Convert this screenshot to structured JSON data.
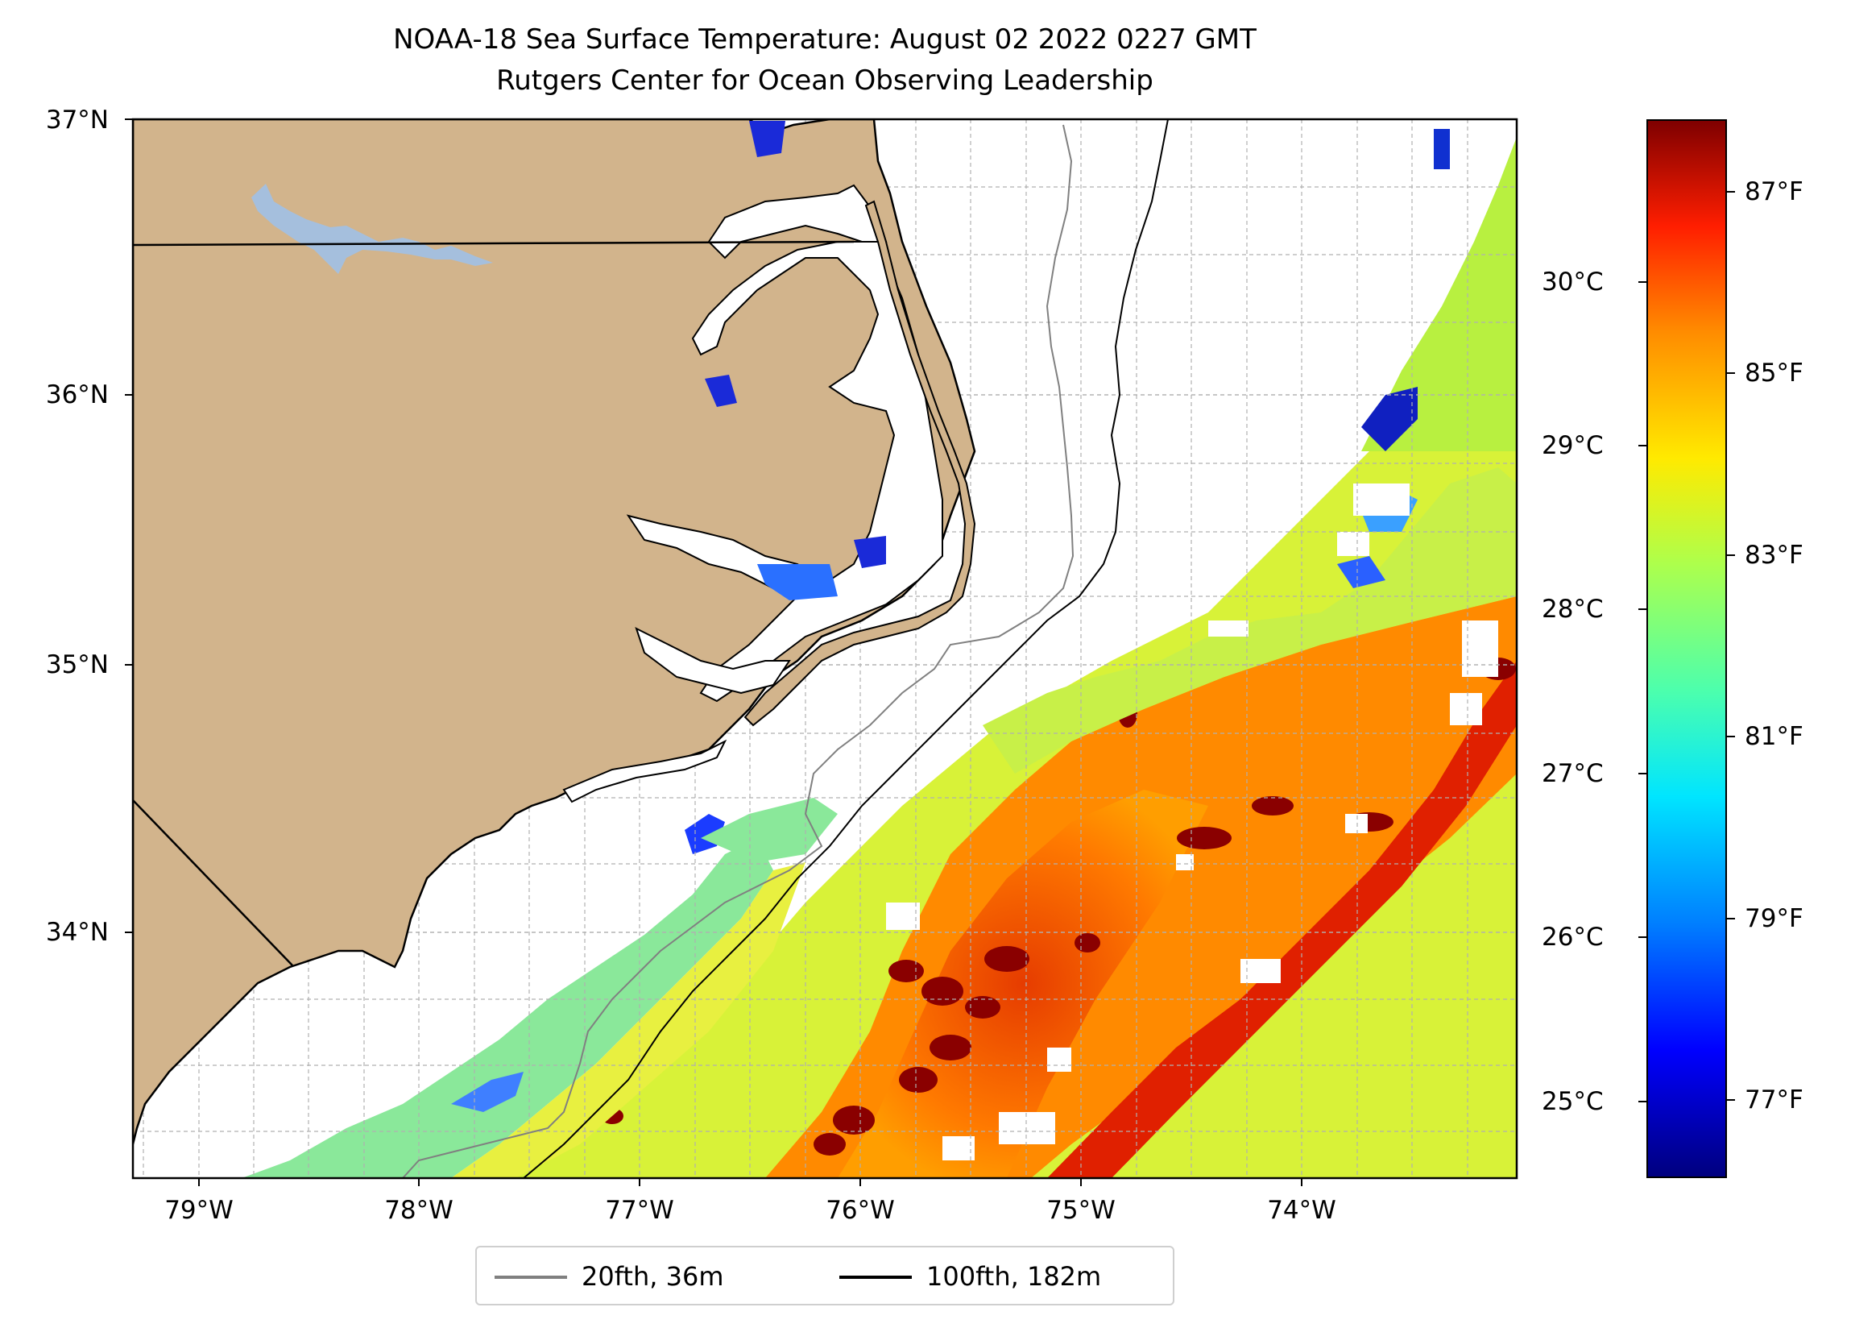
{
  "title": {
    "line1": "NOAA-18 Sea Surface Temperature: August 02 2022 0227 GMT",
    "line2": "Rutgers Center for Ocean Observing Leadership"
  },
  "map": {
    "region": "North Carolina coast (Outer Banks) and adjacent Atlantic",
    "lon_range": [
      -79.3,
      -73.1
    ],
    "lat_range": [
      33.1,
      37.0
    ],
    "lat_labels": [
      "37°N",
      "36°N",
      "35°N",
      "34°N"
    ],
    "lon_labels": [
      "79°W",
      "78°W",
      "77°W",
      "76°W",
      "75°W",
      "74°W"
    ],
    "land_color": "#d2b48c",
    "lake_color": "#a5bfdd",
    "grid": true
  },
  "colorbar": {
    "colormap": "jet",
    "celsius_ticks": [
      "30°C",
      "29°C",
      "28°C",
      "27°C",
      "26°C",
      "25°C"
    ],
    "fahrenheit_ticks": [
      "87°F",
      "85°F",
      "83°F",
      "81°F",
      "79°F",
      "77°F"
    ],
    "range_celsius": [
      24.6,
      31.1
    ]
  },
  "legend": {
    "items": [
      {
        "label": "20fth, 36m",
        "color": "#808080"
      },
      {
        "label": "100fth, 182m",
        "color": "#000000"
      }
    ],
    "placement": "bottom-center"
  }
}
